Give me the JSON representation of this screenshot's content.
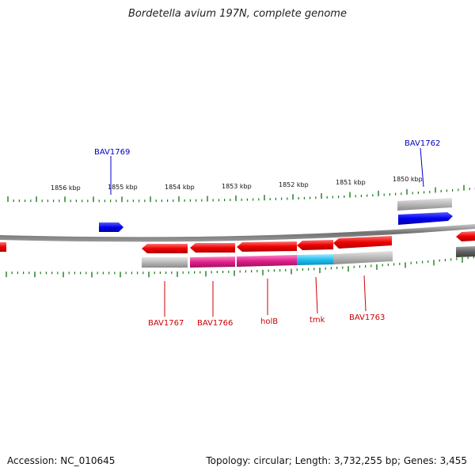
{
  "title": "Bordetella avium 197N, complete genome",
  "footer": {
    "accession": "Accession: NC_010645",
    "summary": "Topology: circular; Length: 3,732,255 bp; Genes: 3,455"
  },
  "scale_labels": [
    "1856 kbp",
    "1855 kbp",
    "1854 kbp",
    "1853 kbp",
    "1852 kbp",
    "1851 kbp",
    "1850 kbp"
  ],
  "top_labels": [
    "BAV1769",
    "BAV1762"
  ],
  "bottom_labels": [
    "BAV1767",
    "BAV1766",
    "holB",
    "tmk",
    "BAV1763"
  ],
  "colors": {
    "forward": "#0000ee",
    "reverse": "#ee0000",
    "highlight": "#e0218a",
    "cyan": "#22c0f0",
    "gray": "#b8b8b8",
    "tick": "#1a7a1a",
    "backbone": "#7a7a7a"
  }
}
